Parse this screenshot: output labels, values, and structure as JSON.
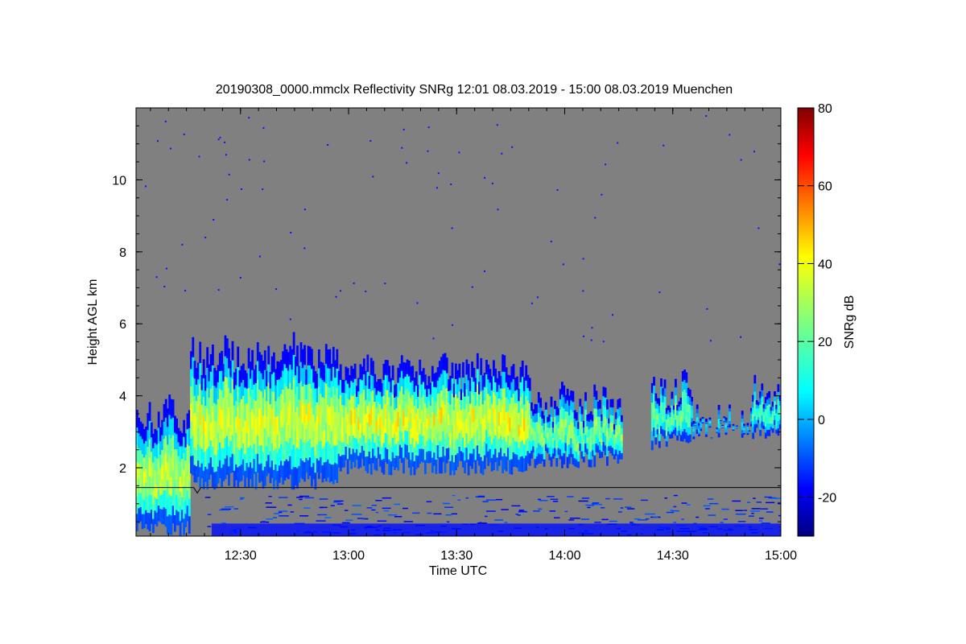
{
  "chart_data": {
    "type": "heatmap",
    "title": "20190308_0000.mmclx Reflectivity SNRg   12:01 08.03.2019 - 15:00 08.03.2019 Muenchen",
    "xlabel": "Time UTC",
    "ylabel": "Height AGL km",
    "colorbar_label": "SNRg dB",
    "xlim": [
      "12:01",
      "15:00"
    ],
    "ylim": [
      0.1,
      12.0
    ],
    "x_ticks": [
      "12:30",
      "13:00",
      "13:30",
      "14:00",
      "14:30",
      "15:00"
    ],
    "y_ticks": [
      2,
      4,
      6,
      8,
      10
    ],
    "colorbar_range": [
      -30,
      80
    ],
    "colorbar_ticks": [
      -20,
      0,
      20,
      40,
      60,
      80
    ],
    "colormap": "jet",
    "background_color": "#808080",
    "overlay_line": {
      "color": "#000000",
      "points": [
        [
          "12:01",
          1.45
        ],
        [
          "12:17",
          1.45
        ],
        [
          "12:18",
          1.3
        ],
        [
          "12:19",
          1.45
        ],
        [
          "15:00",
          1.45
        ]
      ]
    },
    "cloud_regions": [
      {
        "t_start": "12:01",
        "t_end": "12:16",
        "base_km": 0.1,
        "top_km": 4.2,
        "peak_db": 38
      },
      {
        "t_start": "12:16",
        "t_end": "12:57",
        "base_km": 1.4,
        "top_km": 5.8,
        "peak_db": 40
      },
      {
        "t_start": "12:57",
        "t_end": "13:50",
        "base_km": 1.8,
        "top_km": 5.4,
        "peak_db": 42
      },
      {
        "t_start": "13:50",
        "t_end": "14:16",
        "base_km": 2.0,
        "top_km": 4.5,
        "peak_db": 30
      },
      {
        "t_start": "14:24",
        "t_end": "14:35",
        "base_km": 2.5,
        "top_km": 4.9,
        "peak_db": 28
      },
      {
        "t_start": "14:35",
        "t_end": "14:52",
        "base_km": 2.8,
        "top_km": 4.0,
        "peak_db": 12
      },
      {
        "t_start": "14:52",
        "t_end": "15:00",
        "base_km": 2.8,
        "top_km": 4.8,
        "peak_db": 24
      }
    ]
  }
}
